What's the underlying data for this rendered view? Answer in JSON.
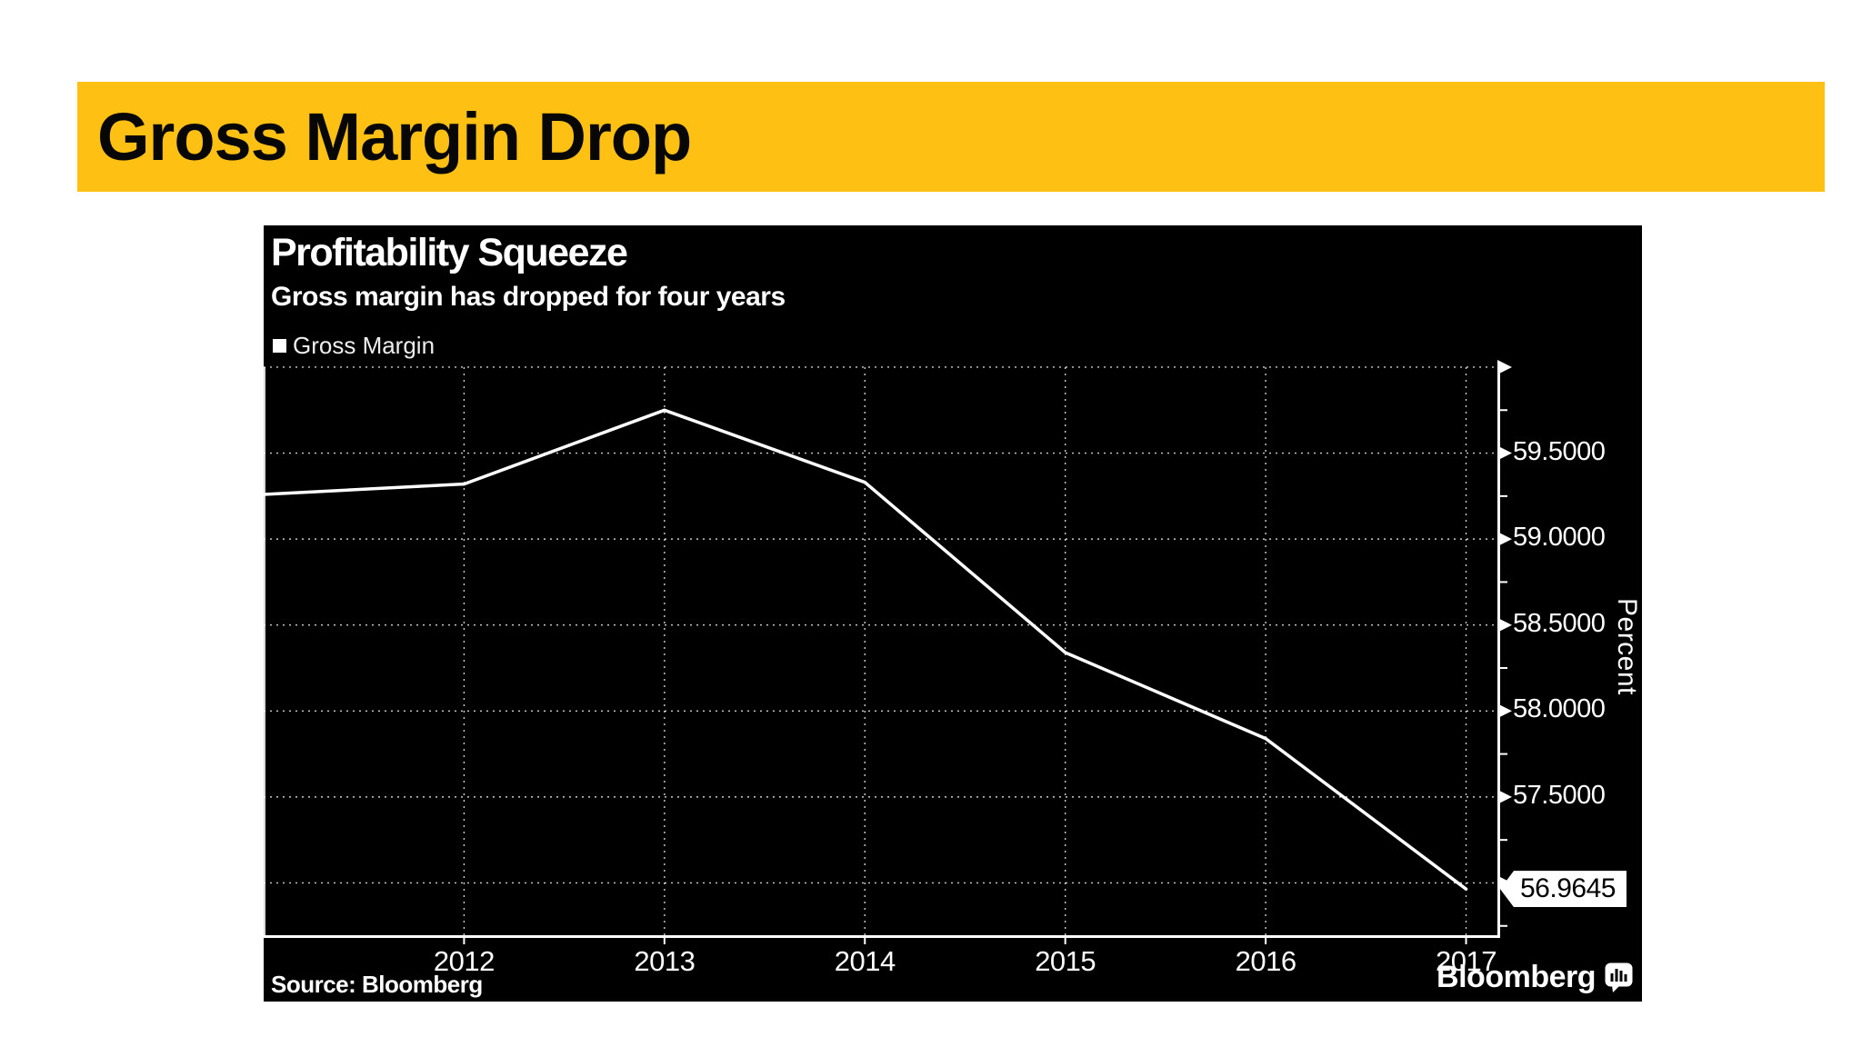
{
  "slide": {
    "title": "Gross Margin Drop",
    "background_color": "#FFFFFF",
    "accent_color": "#FDC013"
  },
  "chart": {
    "title": "Profitability Squeeze",
    "subtitle": "Gross margin has dropped for four years",
    "legend_label": "Gross Margin",
    "source": "Source: Bloomberg",
    "brand": "Bloomberg",
    "background_color": "#000000",
    "text_color": "#FFFFFF"
  },
  "chart_data": {
    "type": "line",
    "title": "Profitability Squeeze",
    "subtitle": "Gross margin has dropped for four years",
    "xlabel": "",
    "ylabel": "Percent",
    "legend": [
      "Gross Margin"
    ],
    "legend_position": "top-left",
    "grid": "dashed",
    "y_axis_side": "right",
    "x": [
      2011,
      2012,
      2013,
      2014,
      2015,
      2016,
      2017
    ],
    "series": [
      {
        "name": "Gross Margin",
        "color": "#FFFFFF",
        "values": [
          59.26,
          59.32,
          59.75,
          59.33,
          58.34,
          57.84,
          56.9645
        ]
      }
    ],
    "x_tick_labels": [
      "2012",
      "2013",
      "2014",
      "2015",
      "2016",
      "2017"
    ],
    "y_major_ticks": [
      60.0,
      59.5,
      59.0,
      58.5,
      58.0,
      57.5,
      57.0
    ],
    "y_tick_labels": [
      "",
      "59.5000",
      "59.0000",
      "58.5000",
      "58.0000",
      "57.5000",
      ""
    ],
    "y_minor_ticks": [
      59.75,
      59.25,
      58.75,
      58.25,
      57.75,
      57.25,
      56.75
    ],
    "xlim": [
      2011,
      2017.17
    ],
    "ylim": [
      56.68,
      60.021
    ],
    "last_value_label": "56.9645"
  }
}
